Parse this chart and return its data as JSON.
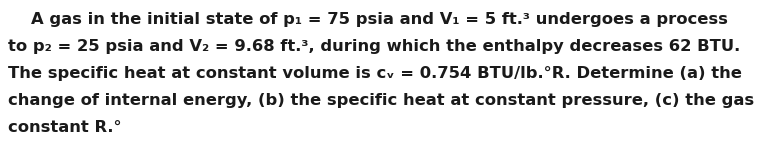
{
  "lines": [
    "    A gas in the initial state of p₁ = 75 psia and V₁ = 5 ft.³ undergoes a process",
    "to p₂ = 25 psia and V₂ = 9.68 ft.³, during which the enthalpy decreases 62 BTU.",
    "The specific heat at constant volume is cᵥ = 0.754 BTU/lb.°R. Determine (a) the",
    "change of internal energy, (b) the specific heat at constant pressure, (c) the gas",
    "constant R.°"
  ],
  "background_color": "#ffffff",
  "text_color": "#1a1a1a",
  "font_size": 11.8,
  "fig_width": 7.75,
  "fig_height": 1.6,
  "dpi": 100
}
